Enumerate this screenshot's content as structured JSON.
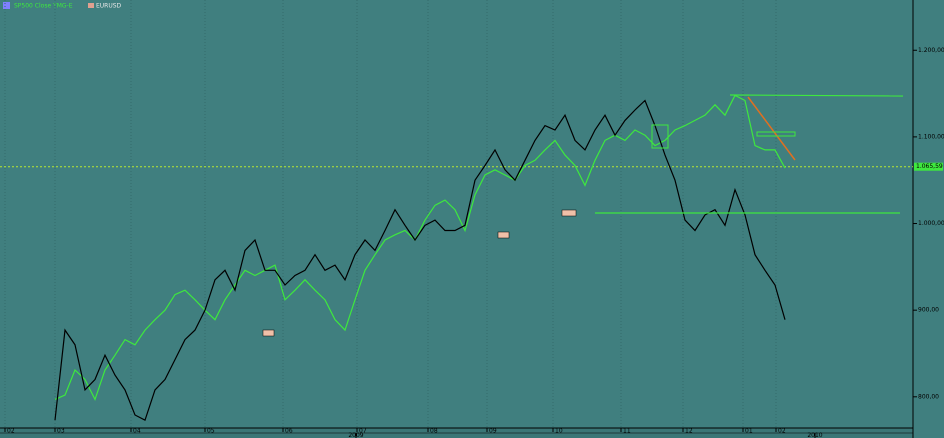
{
  "chart_data": {
    "type": "line",
    "legend": [
      "SP500 Close TMG-E",
      "EURUSD"
    ],
    "series": [
      {
        "name": "SP500 Close TMG-E",
        "color": "#3ee83e",
        "values": [
          797,
          802,
          831,
          820,
          797,
          831,
          848,
          866,
          860,
          877,
          889,
          900,
          918,
          923,
          912,
          900,
          889,
          912,
          929,
          946,
          940,
          946,
          952,
          912,
          923,
          935,
          923,
          912,
          889,
          877,
          912,
          946,
          964,
          981,
          987,
          992,
          981,
          1004,
          1021,
          1027,
          1016,
          992,
          1033,
          1056,
          1062,
          1056,
          1050,
          1067,
          1073,
          1085,
          1096,
          1079,
          1067,
          1044,
          1073,
          1096,
          1102,
          1096,
          1108,
          1102,
          1090,
          1096,
          1108,
          1113,
          1119,
          1125,
          1137,
          1125,
          1148,
          1142,
          1090,
          1085,
          1085,
          1064
        ]
      },
      {
        "name": "EURUSD",
        "color": "#000000",
        "values": [
          773,
          877,
          860,
          808,
          820,
          848,
          825,
          808,
          779,
          773,
          808,
          820,
          843,
          866,
          877,
          900,
          935,
          946,
          923,
          969,
          981,
          946,
          946,
          929,
          940,
          946,
          964,
          946,
          952,
          935,
          964,
          981,
          969,
          992,
          1016,
          998,
          981,
          998,
          1004,
          992,
          992,
          998,
          1050,
          1067,
          1085,
          1062,
          1050,
          1073,
          1096,
          1113,
          1108,
          1125,
          1096,
          1085,
          1108,
          1125,
          1102,
          1119,
          1131,
          1142,
          1113,
          1079,
          1050,
          1004,
          992,
          1010,
          1016,
          998,
          1039,
          1010,
          964,
          946,
          929,
          889
        ]
      }
    ],
    "ylim": [
      764,
      1258
    ],
    "yticks": [
      {
        "value": 800,
        "label": "800,00"
      },
      {
        "value": 900,
        "label": "900,00"
      },
      {
        "value": 1000,
        "label": "1.000,00"
      },
      {
        "value": 1100,
        "label": "1.100,00"
      },
      {
        "value": 1200,
        "label": "1.200,00"
      }
    ],
    "xlim": [
      -5.5,
      85.8
    ],
    "xticks": [
      {
        "value": -5,
        "label": "02"
      },
      {
        "value": 0,
        "label": "03"
      },
      {
        "value": 7.6,
        "label": "04"
      },
      {
        "value": 15,
        "label": "05"
      },
      {
        "value": 22.8,
        "label": "06"
      },
      {
        "value": 30.2,
        "label": "07"
      },
      {
        "value": 37.3,
        "label": "08"
      },
      {
        "value": 43.2,
        "label": "09"
      },
      {
        "value": 49.8,
        "label": "10"
      },
      {
        "value": 56.6,
        "label": "11"
      },
      {
        "value": 62.8,
        "label": "12"
      },
      {
        "value": 68.8,
        "label": "01"
      },
      {
        "value": 72.1,
        "label": "02"
      }
    ],
    "year_ticks": [
      {
        "value": 30.1,
        "label": "2009"
      },
      {
        "value": 76,
        "label": "2010"
      }
    ],
    "last_value": {
      "value": 1065.59,
      "label": "1.065,59"
    },
    "grid": true
  }
}
